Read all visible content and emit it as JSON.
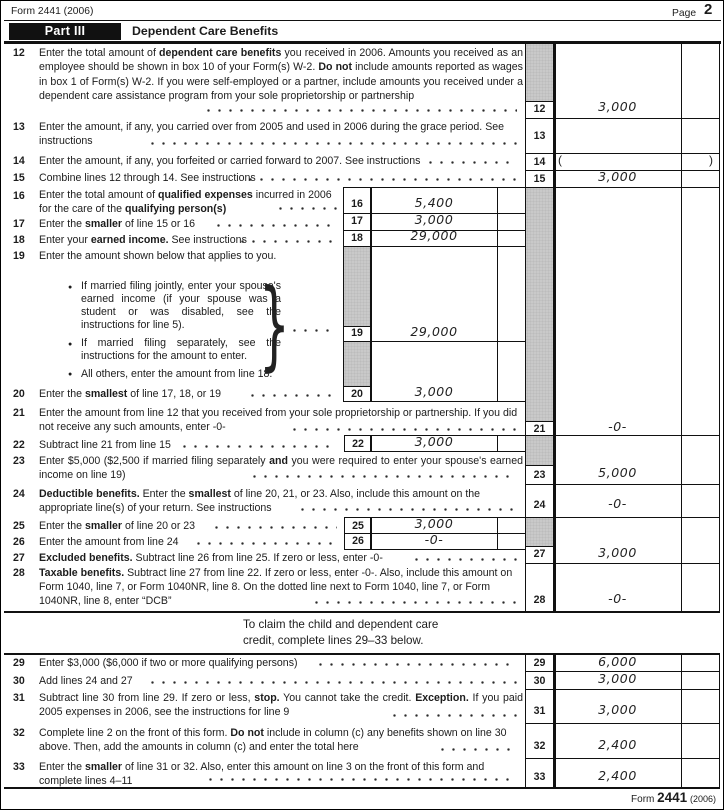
{
  "header": {
    "form_id": "Form 2441 (2006)",
    "page_label": "Page",
    "page_number": "2"
  },
  "part3": {
    "label": "Part III",
    "title": "Dependent Care Benefits"
  },
  "claim_note": {
    "line1": "To claim the child and dependent care",
    "line2": "credit, complete lines 29–33 below."
  },
  "footer": {
    "form_label": "Form",
    "form_number": "2441",
    "year": "(2006)"
  },
  "lines": {
    "12": {
      "no": "12",
      "value": "3,000",
      "text": [
        {
          "t": "Enter the total amount of "
        },
        {
          "t": "dependent care benefits",
          "b": 1
        },
        {
          "t": " you received in 2006. Amounts you received as an employee should be shown in box 10 of your Form(s) W-2. "
        },
        {
          "t": "Do not",
          "b": 1
        },
        {
          "t": " include amounts reported as wages in box 1 of Form(s) W-2. If you were self-employed or a partner, include amounts you received under a dependent care assistance program from your sole proprietorship or partnership"
        }
      ]
    },
    "13": {
      "no": "13",
      "value": "",
      "text": [
        {
          "t": "Enter the amount, if any, you carried over from 2005 and used in 2006 during the grace period. See instructions"
        }
      ]
    },
    "14": {
      "no": "14",
      "value": "",
      "paren_open": "(",
      "paren_close": ")",
      "text": [
        {
          "t": "Enter the amount, if any, you forfeited or carried forward to 2007. See instructions"
        }
      ]
    },
    "15": {
      "no": "15",
      "value": "3,000",
      "text": [
        {
          "t": "Combine lines 12 through 14. See instructions"
        }
      ]
    },
    "16": {
      "no": "16",
      "value": "5,400",
      "text": [
        {
          "t": "Enter the total amount of "
        },
        {
          "t": "qualified expenses",
          "b": 1
        },
        {
          "t": " incurred in 2006 for the care of the "
        },
        {
          "t": "qualifying person(s)",
          "b": 1
        }
      ]
    },
    "17": {
      "no": "17",
      "value": "3,000",
      "text": [
        {
          "t": "Enter the "
        },
        {
          "t": "smaller",
          "b": 1
        },
        {
          "t": " of line 15 or 16"
        }
      ]
    },
    "18": {
      "no": "18",
      "value": "29,000",
      "text": [
        {
          "t": "Enter your "
        },
        {
          "t": "earned income.",
          "b": 1
        },
        {
          "t": " See instructions"
        }
      ]
    },
    "19": {
      "no": "19",
      "value": "29,000",
      "intro": [
        {
          "t": "Enter the amount shown below that applies to you."
        }
      ],
      "brace": "}",
      "bullets": [
        [
          {
            "t": "If married filing jointly, enter your spouse's earned income (if your spouse was a student or was disabled, see the instructions for line 5)."
          }
        ],
        [
          {
            "t": "If married filing separately, see the instructions for the amount to enter."
          }
        ],
        [
          {
            "t": "All others, enter the amount from line 18."
          }
        ]
      ]
    },
    "20": {
      "no": "20",
      "value": "3,000",
      "text": [
        {
          "t": "Enter the "
        },
        {
          "t": "smallest",
          "b": 1
        },
        {
          "t": " of line 17, 18, or 19"
        }
      ]
    },
    "21": {
      "no": "21",
      "value": "-0-",
      "text": [
        {
          "t": "Enter the amount from line 12 that you received from your sole proprietorship or partnership. If you did not receive any such amounts, enter -0-"
        }
      ]
    },
    "22": {
      "no": "22",
      "value": "3,000",
      "text": [
        {
          "t": "Subtract line 21 from line 15"
        }
      ]
    },
    "23": {
      "no": "23",
      "value": "5,000",
      "text": [
        {
          "t": "Enter $5,000 ($2,500 if married filing separately "
        },
        {
          "t": "and",
          "b": 1
        },
        {
          "t": " you were required to enter your spouse's earned income on line 19)"
        }
      ]
    },
    "24": {
      "no": "24",
      "value": "-0-",
      "text": [
        {
          "t": "Deductible benefits.",
          "b": 1
        },
        {
          "t": " Enter the "
        },
        {
          "t": "smallest",
          "b": 1
        },
        {
          "t": " of line 20, 21, or 23. Also, include this amount on the appropriate line(s) of your return. See instructions"
        }
      ]
    },
    "25": {
      "no": "25",
      "value": "3,000",
      "text": [
        {
          "t": "Enter the "
        },
        {
          "t": "smaller",
          "b": 1
        },
        {
          "t": " of line 20 or 23"
        }
      ]
    },
    "26": {
      "no": "26",
      "value": "-0-",
      "text": [
        {
          "t": "Enter the amount from line 24"
        }
      ]
    },
    "27": {
      "no": "27",
      "value": "3,000",
      "text": [
        {
          "t": "Excluded benefits.",
          "b": 1
        },
        {
          "t": " Subtract line 26 from line 25. If zero or less, enter -0-"
        }
      ]
    },
    "28": {
      "no": "28",
      "value": "-0-",
      "text": [
        {
          "t": "Taxable benefits.",
          "b": 1
        },
        {
          "t": " Subtract line 27 from line 22. If zero or less, enter -0-. Also, include this amount on Form 1040, line 7, or Form 1040NR, line 8. On the dotted line next to Form 1040, line 7, or Form 1040NR, line 8, enter “DCB”"
        }
      ]
    },
    "29": {
      "no": "29",
      "value": "6,000",
      "text": [
        {
          "t": "Enter $3,000 ($6,000 if two or more qualifying persons)"
        }
      ]
    },
    "30": {
      "no": "30",
      "value": "3,000",
      "text": [
        {
          "t": "Add lines 24 and 27"
        }
      ]
    },
    "31": {
      "no": "31",
      "value": "3,000",
      "text": [
        {
          "t": "Subtract line 30 from line 29. If zero or less, "
        },
        {
          "t": "stop.",
          "b": 1
        },
        {
          "t": " You cannot take the credit. "
        },
        {
          "t": "Exception.",
          "b": 1
        },
        {
          "t": " If you paid 2005 expenses in 2006, see the instructions for line 9"
        }
      ]
    },
    "32": {
      "no": "32",
      "value": "2,400",
      "text": [
        {
          "t": "Complete line 2 on the front of this form. "
        },
        {
          "t": "Do not",
          "b": 1
        },
        {
          "t": " include in column (c) any benefits shown on line 30 above. Then, add the amounts in column (c) and enter the total here"
        }
      ]
    },
    "33": {
      "no": "33",
      "value": "2,400",
      "text": [
        {
          "t": "Enter the "
        },
        {
          "t": "smaller",
          "b": 1
        },
        {
          "t": " of line 31 or 32. Also, enter this amount on line 3 on the front of this form and complete lines 4–11"
        }
      ]
    }
  }
}
